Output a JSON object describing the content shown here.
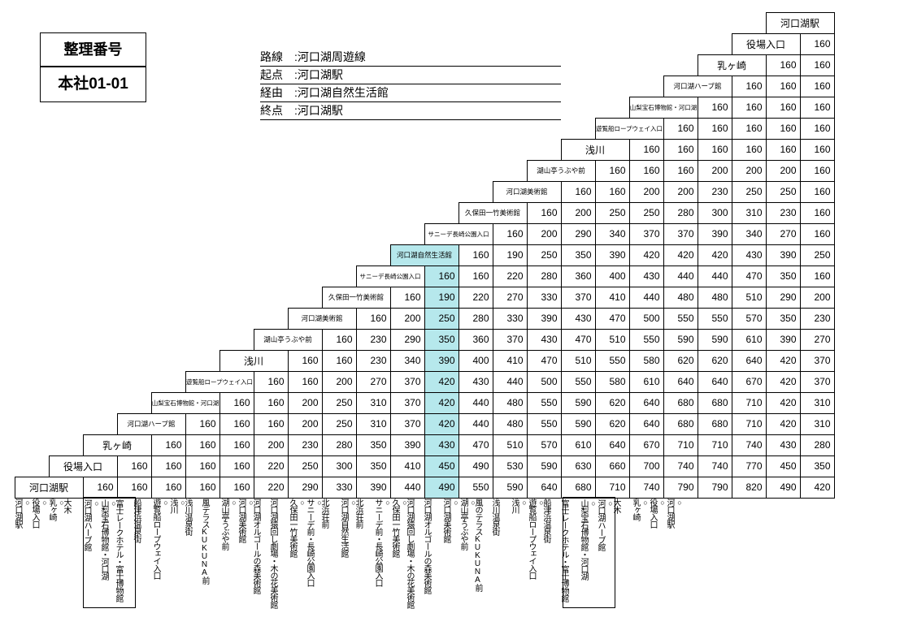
{
  "id_box1": "整理番号",
  "id_box2": "本社01-01",
  "route": {
    "label_route": "路線",
    "route": "河口湖周遊線",
    "label_origin": "起点",
    "origin": "河口湖駅",
    "label_via": "経由",
    "via": "河口湖自然生活館",
    "label_dest": "終点",
    "dest": "河口湖駅"
  },
  "colors": {
    "highlight": "#b6e8ec",
    "border": "#000",
    "bg": "#fff"
  },
  "cell": {
    "w": 42,
    "h": 26,
    "fare_fontsize": 12,
    "stn_fontsize": 12,
    "stn_sm_fontsize": 8.5
  },
  "stations": [
    {
      "name": "河口湖駅",
      "small": false
    },
    {
      "name": "役場入口",
      "small": false
    },
    {
      "name": "乳ヶ崎",
      "small": false
    },
    {
      "name": "河口湖ハーブ館",
      "small": true
    },
    {
      "name": "山梨宝石博物館・河口湖",
      "small": true,
      "xs": true
    },
    {
      "name": "遊覧船ロープウェイ入口",
      "small": true,
      "xs": true
    },
    {
      "name": "浅川",
      "small": false
    },
    {
      "name": "湖山亭うぶや前",
      "small": true
    },
    {
      "name": "河口湖美術館",
      "small": true
    },
    {
      "name": "久保田一竹美術館",
      "small": true
    },
    {
      "name": "サニーデ長崎公園入口",
      "small": true,
      "xs": true
    },
    {
      "name": "河口湖自然生活館",
      "small": true
    },
    {
      "name": "サニーデ長崎公園入口",
      "small": true,
      "xs": true
    },
    {
      "name": "久保田一竹美術館",
      "small": true
    },
    {
      "name": "河口湖美術館",
      "small": true
    },
    {
      "name": "湖山亭うぶや前",
      "small": true
    },
    {
      "name": "浅川",
      "small": false
    },
    {
      "name": "遊覧船ロープウェイ入口",
      "small": true,
      "xs": true
    },
    {
      "name": "山梨宝石博物館・河口湖",
      "small": true,
      "xs": true
    },
    {
      "name": "河口湖ハーブ館",
      "small": true
    },
    {
      "name": "乳ヶ崎",
      "small": false
    },
    {
      "name": "役場入口",
      "small": false
    },
    {
      "name": "河口湖駅",
      "small": false
    }
  ],
  "fares": [
    [
      160
    ],
    [
      160,
      160
    ],
    [
      160,
      160,
      160
    ],
    [
      160,
      160,
      160,
      160
    ],
    [
      160,
      160,
      160,
      160,
      160
    ],
    [
      160,
      160,
      160,
      160,
      160,
      160
    ],
    [
      160,
      160,
      160,
      200,
      200,
      200,
      160
    ],
    [
      160,
      160,
      200,
      200,
      230,
      250,
      250,
      160
    ],
    [
      160,
      200,
      250,
      250,
      280,
      300,
      310,
      230,
      160
    ],
    [
      160,
      200,
      290,
      340,
      370,
      370,
      390,
      340,
      270,
      160
    ],
    [
      160,
      190,
      250,
      350,
      390,
      420,
      420,
      420,
      430,
      390,
      250
    ],
    [
      160,
      160,
      220,
      280,
      360,
      400,
      430,
      440,
      440,
      470,
      350,
      160
    ],
    [
      160,
      190,
      220,
      270,
      330,
      370,
      410,
      440,
      480,
      480,
      510,
      290,
      200
    ],
    [
      160,
      200,
      250,
      280,
      330,
      390,
      430,
      470,
      500,
      550,
      550,
      570,
      350,
      230
    ],
    [
      160,
      230,
      290,
      350,
      360,
      370,
      430,
      470,
      510,
      550,
      590,
      590,
      610,
      390,
      270
    ],
    [
      160,
      160,
      230,
      340,
      390,
      400,
      410,
      470,
      510,
      550,
      580,
      620,
      620,
      640,
      420,
      370
    ],
    [
      160,
      160,
      200,
      270,
      370,
      420,
      430,
      440,
      500,
      550,
      580,
      610,
      640,
      640,
      670,
      420,
      370
    ],
    [
      160,
      160,
      200,
      250,
      310,
      370,
      420,
      440,
      480,
      550,
      590,
      620,
      640,
      680,
      680,
      710,
      420,
      310
    ],
    [
      160,
      160,
      160,
      200,
      250,
      310,
      370,
      420,
      440,
      480,
      550,
      590,
      620,
      640,
      680,
      680,
      710,
      420,
      310
    ],
    [
      160,
      160,
      160,
      200,
      230,
      280,
      350,
      390,
      430,
      470,
      510,
      570,
      610,
      640,
      670,
      710,
      710,
      740,
      430,
      280
    ],
    [
      160,
      160,
      160,
      160,
      220,
      250,
      300,
      350,
      410,
      450,
      490,
      530,
      590,
      630,
      660,
      700,
      740,
      740,
      770,
      450,
      350
    ],
    [
      160,
      160,
      160,
      160,
      160,
      220,
      290,
      330,
      390,
      440,
      490,
      550,
      590,
      640,
      680,
      710,
      740,
      790,
      790,
      820,
      490,
      420
    ]
  ],
  "highlight_col": 11,
  "bottom_stops": [
    {
      "t": "河口湖駅",
      "r": true
    },
    {
      "t": "役場入口",
      "r": true
    },
    {
      "t": "乳ヶ崎",
      "r": true
    },
    {
      "t": "大木",
      "r": false
    },
    {
      "t": "河口湖ハーブ館",
      "r": true,
      "boxstart": true
    },
    {
      "t": "山梨宝石博物館・河口湖",
      "r": true
    },
    {
      "t": "富士レークホテル・富士博物館",
      "r": false,
      "boxend": true
    },
    {
      "t": "船津浜温泉街",
      "r": false
    },
    {
      "t": "遊覧船ロープウェイ入口",
      "r": true
    },
    {
      "t": "浅川",
      "r": true
    },
    {
      "t": "浅川温泉街",
      "r": false
    },
    {
      "t": "風テラスKUKUNA前",
      "r": false
    },
    {
      "t": "湖山亭うぶや前",
      "r": true
    },
    {
      "t": "河口湖美術館",
      "r": true
    },
    {
      "t": "河口湖オルゴールの森美術館",
      "r": false
    },
    {
      "t": "河口湖猿回し劇場・木の花美術館",
      "r": false
    },
    {
      "t": "久保田一竹美術館",
      "r": true
    },
    {
      "t": "サニーデ前・長崎公園入口",
      "r": true
    },
    {
      "t": "北浜荘前",
      "r": false
    },
    {
      "t": "河口湖自然生活館",
      "r": true
    },
    {
      "t": "北浜荘前",
      "r": false
    },
    {
      "t": "サニーデ前・長崎公園入口",
      "r": true
    },
    {
      "t": "久保田一竹美術館",
      "r": true
    },
    {
      "t": "河口湖猿回し劇場・木の花美術館",
      "r": false
    },
    {
      "t": "河口湖オルゴールの森美術館",
      "r": false
    },
    {
      "t": "河口湖美術館",
      "r": true
    },
    {
      "t": "湖山亭うぶや前",
      "r": true
    },
    {
      "t": "風のテラスKUKUNA前",
      "r": false
    },
    {
      "t": "浅川温泉街",
      "r": false
    },
    {
      "t": "浅川",
      "r": true
    },
    {
      "t": "遊覧船ロープウェイ入口",
      "r": true
    },
    {
      "t": "船津浜温泉街",
      "r": false
    },
    {
      "t": "富士レークホテル・富士博物館",
      "r": false,
      "boxstart": true
    },
    {
      "t": "山梨宝石博物館・河口湖",
      "r": true
    },
    {
      "t": "河口湖ハーブ館",
      "r": true,
      "boxend": true
    },
    {
      "t": "大木",
      "r": false
    },
    {
      "t": "乳ヶ崎",
      "r": true
    },
    {
      "t": "役場入口",
      "r": true
    },
    {
      "t": "河口湖駅",
      "r": true
    }
  ]
}
